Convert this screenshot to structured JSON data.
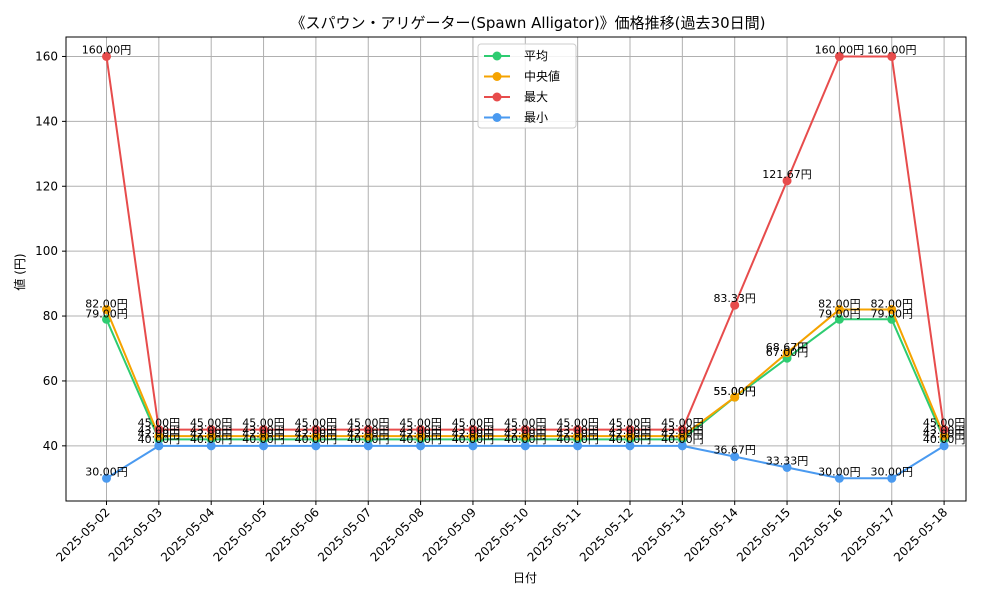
{
  "chart_data": {
    "type": "line",
    "title": "《スパウン・アリゲーター(Spawn Alligator)》価格推移(過去30日間)",
    "xlabel": "日付",
    "ylabel": "値 (円)",
    "ylim": [
      23,
      166
    ],
    "yticks": [
      40,
      60,
      80,
      100,
      120,
      140,
      160
    ],
    "grid": true,
    "legend_position": "top-center",
    "unit_suffix": "円",
    "x": [
      "2025-05-02",
      "2025-05-03",
      "2025-05-04",
      "2025-05-05",
      "2025-05-06",
      "2025-05-07",
      "2025-05-08",
      "2025-05-09",
      "2025-05-10",
      "2025-05-11",
      "2025-05-12",
      "2025-05-13",
      "2025-05-14",
      "2025-05-15",
      "2025-05-16",
      "2025-05-17",
      "2025-05-18"
    ],
    "series": [
      {
        "name": "平均",
        "color": "#2ecc71",
        "labels": false,
        "values": [
          79.0,
          42.0,
          42.0,
          42.0,
          42.0,
          42.0,
          42.0,
          42.0,
          42.0,
          42.0,
          42.0,
          42.0,
          55.0,
          67.0,
          79.0,
          79.0,
          42.0
        ]
      },
      {
        "name": "中央値",
        "color": "#f5a300",
        "labels": false,
        "values": [
          82.0,
          43.0,
          43.0,
          43.0,
          43.0,
          43.0,
          43.0,
          43.0,
          43.0,
          43.0,
          43.0,
          43.0,
          55.0,
          68.67,
          82.0,
          82.0,
          43.0
        ]
      },
      {
        "name": "最大",
        "color": "#e74c4c",
        "labels": true,
        "values": [
          160.0,
          45.0,
          45.0,
          45.0,
          45.0,
          45.0,
          45.0,
          45.0,
          45.0,
          45.0,
          45.0,
          45.0,
          83.33,
          121.67,
          160.0,
          160.0,
          45.0
        ]
      },
      {
        "name": "最小",
        "color": "#4a9af0",
        "labels": true,
        "values": [
          30.0,
          40.0,
          40.0,
          40.0,
          40.0,
          40.0,
          40.0,
          40.0,
          40.0,
          40.0,
          40.0,
          40.0,
          36.67,
          33.33,
          30.0,
          30.0,
          40.0
        ]
      }
    ],
    "annotations": [
      {
        "x": 0,
        "text": "82.00円"
      },
      {
        "x": 0,
        "text": "79.00円"
      },
      {
        "x": 1,
        "text": "42.00円"
      },
      {
        "x": 1,
        "text": "43.00円"
      },
      {
        "x": 2,
        "text": "42.00円"
      },
      {
        "x": 2,
        "text": "43.00円"
      },
      {
        "x": 3,
        "text": "42.00円"
      },
      {
        "x": 3,
        "text": "43.00円"
      },
      {
        "x": 4,
        "text": "42.00円"
      },
      {
        "x": 4,
        "text": "43.00円"
      },
      {
        "x": 5,
        "text": "42.00円"
      },
      {
        "x": 5,
        "text": "43.00円"
      },
      {
        "x": 6,
        "text": "42.00円"
      },
      {
        "x": 6,
        "text": "43.00円"
      },
      {
        "x": 7,
        "text": "42.00円"
      },
      {
        "x": 7,
        "text": "43.00円"
      },
      {
        "x": 8,
        "text": "42.00円"
      },
      {
        "x": 8,
        "text": "43.00円"
      },
      {
        "x": 9,
        "text": "42.00円"
      },
      {
        "x": 9,
        "text": "43.00円"
      },
      {
        "x": 10,
        "text": "42.00円"
      },
      {
        "x": 10,
        "text": "43.00円"
      },
      {
        "x": 11,
        "text": "42.00円"
      },
      {
        "x": 11,
        "text": "43.00円"
      },
      {
        "x": 12,
        "text": "55.00円"
      },
      {
        "x": 12,
        "text": "55.00円"
      },
      {
        "x": 13,
        "text": "68.67円"
      },
      {
        "x": 13,
        "text": "67.00円"
      },
      {
        "x": 14,
        "text": "82.00円"
      },
      {
        "x": 14,
        "text": "79.00円"
      },
      {
        "x": 15,
        "text": "82.00円"
      },
      {
        "x": 15,
        "text": "79.00円"
      },
      {
        "x": 16,
        "text": "42.00円"
      },
      {
        "x": 16,
        "text": "43.00円"
      }
    ]
  }
}
